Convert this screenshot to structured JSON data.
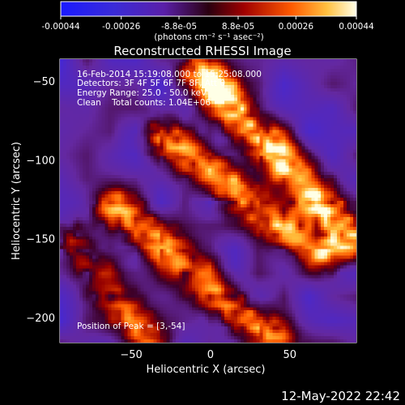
{
  "colorbar": {
    "ticks": [
      "-0.00044",
      "-0.00026",
      "-8.8e-05",
      "8.8e-05",
      "0.00026",
      "0.00044"
    ],
    "tick_values": [
      -0.00044,
      -0.00026,
      -8.8e-05,
      8.8e-05,
      0.00026,
      0.00044
    ],
    "range": [
      -0.00044,
      0.00044
    ],
    "units": "(photons cm⁻² s⁻¹ asec⁻²)"
  },
  "chart_data": {
    "type": "heatmap",
    "title": "Reconstructed RHESSI Image",
    "xlabel": "Heliocentric X (arcsec)",
    "ylabel": "Heliocentric Y (arcsec)",
    "xlim": [
      -95,
      92
    ],
    "ylim": [
      -216,
      -36
    ],
    "xticks": [
      -50,
      0,
      50
    ],
    "yticks": [
      -50,
      -100,
      -150,
      -200
    ],
    "xtick_labels": [
      "−50",
      "0",
      "50"
    ],
    "ytick_labels": [
      "−50",
      "−100",
      "−150",
      "−200"
    ],
    "value_range": [
      -0.00044,
      0.00044
    ],
    "colormap": "red-temperature with blue/purple negatives",
    "peak_position": [
      3,
      -54
    ],
    "bright_ridges": [
      {
        "from": [
          -5,
          -45
        ],
        "to": [
          90,
          -150
        ],
        "strength": 1.0
      },
      {
        "from": [
          -30,
          -85
        ],
        "to": [
          70,
          -160
        ],
        "strength": 0.8
      },
      {
        "from": [
          -60,
          -130
        ],
        "to": [
          40,
          -215
        ],
        "strength": 0.75
      },
      {
        "from": [
          -90,
          -150
        ],
        "to": [
          -40,
          -215
        ],
        "strength": 0.55
      }
    ],
    "annotations": {
      "time": "16-Feb-2014 15:19:08.000 to 15:25:08.000",
      "detectors": "Detectors: 3F 4F 5F 6F 7F 8F, Att 0",
      "energy": "Energy Range: 25.0 - 50.0 keV",
      "clean": "Clean    Total counts: 1.04E+06",
      "peak": "Position of Peak = [3,-54]"
    }
  },
  "footer": {
    "date": "12-May-2022 22:42"
  }
}
